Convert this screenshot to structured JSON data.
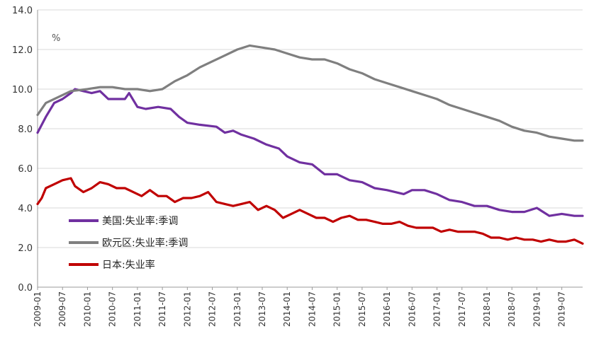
{
  "chart_data": {
    "type": "line",
    "unit_label": "%",
    "ylim": [
      0,
      14
    ],
    "yticks": [
      "0.0",
      "2.0",
      "4.0",
      "6.0",
      "8.0",
      "10.0",
      "12.0",
      "14.0"
    ],
    "xticks": [
      "2009-01",
      "2009-07",
      "2010-01",
      "2010-07",
      "2011-01",
      "2011-07",
      "2012-01",
      "2012-07",
      "2013-01",
      "2013-07",
      "2014-01",
      "2014-07",
      "2015-01",
      "2015-07",
      "2016-01",
      "2016-07",
      "2017-01",
      "2017-07",
      "2018-01",
      "2018-07",
      "2019-01",
      "2019-07"
    ],
    "x_start": "2009-01",
    "x_end": "2019-12",
    "grid": "horizontal",
    "legend_position": "lower-left",
    "series": [
      {
        "name": "美国:失业率:季调",
        "color": "#7030a0",
        "points": [
          [
            "2009-01",
            7.8
          ],
          [
            "2009-03",
            8.6
          ],
          [
            "2009-05",
            9.3
          ],
          [
            "2009-07",
            9.5
          ],
          [
            "2009-09",
            9.8
          ],
          [
            "2009-10",
            10.0
          ],
          [
            "2009-12",
            9.9
          ],
          [
            "2010-02",
            9.8
          ],
          [
            "2010-04",
            9.9
          ],
          [
            "2010-06",
            9.5
          ],
          [
            "2010-08",
            9.5
          ],
          [
            "2010-10",
            9.5
          ],
          [
            "2010-11",
            9.8
          ],
          [
            "2011-01",
            9.1
          ],
          [
            "2011-03",
            9.0
          ],
          [
            "2011-06",
            9.1
          ],
          [
            "2011-09",
            9.0
          ],
          [
            "2011-11",
            8.6
          ],
          [
            "2012-01",
            8.3
          ],
          [
            "2012-04",
            8.2
          ],
          [
            "2012-08",
            8.1
          ],
          [
            "2012-10",
            7.8
          ],
          [
            "2012-12",
            7.9
          ],
          [
            "2013-02",
            7.7
          ],
          [
            "2013-05",
            7.5
          ],
          [
            "2013-08",
            7.2
          ],
          [
            "2013-11",
            7.0
          ],
          [
            "2014-01",
            6.6
          ],
          [
            "2014-04",
            6.3
          ],
          [
            "2014-07",
            6.2
          ],
          [
            "2014-10",
            5.7
          ],
          [
            "2015-01",
            5.7
          ],
          [
            "2015-04",
            5.4
          ],
          [
            "2015-07",
            5.3
          ],
          [
            "2015-10",
            5.0
          ],
          [
            "2016-01",
            4.9
          ],
          [
            "2016-05",
            4.7
          ],
          [
            "2016-07",
            4.9
          ],
          [
            "2016-10",
            4.9
          ],
          [
            "2017-01",
            4.7
          ],
          [
            "2017-04",
            4.4
          ],
          [
            "2017-07",
            4.3
          ],
          [
            "2017-10",
            4.1
          ],
          [
            "2018-01",
            4.1
          ],
          [
            "2018-04",
            3.9
          ],
          [
            "2018-07",
            3.8
          ],
          [
            "2018-10",
            3.8
          ],
          [
            "2019-01",
            4.0
          ],
          [
            "2019-04",
            3.6
          ],
          [
            "2019-07",
            3.7
          ],
          [
            "2019-10",
            3.6
          ],
          [
            "2019-12",
            3.6
          ]
        ]
      },
      {
        "name": "欧元区:失业率:季调",
        "color": "#7f7f7f",
        "points": [
          [
            "2009-01",
            8.7
          ],
          [
            "2009-03",
            9.3
          ],
          [
            "2009-06",
            9.6
          ],
          [
            "2009-09",
            9.9
          ],
          [
            "2010-01",
            10.0
          ],
          [
            "2010-04",
            10.1
          ],
          [
            "2010-07",
            10.1
          ],
          [
            "2010-10",
            10.0
          ],
          [
            "2011-01",
            10.0
          ],
          [
            "2011-04",
            9.9
          ],
          [
            "2011-07",
            10.0
          ],
          [
            "2011-10",
            10.4
          ],
          [
            "2012-01",
            10.7
          ],
          [
            "2012-04",
            11.1
          ],
          [
            "2012-07",
            11.4
          ],
          [
            "2012-10",
            11.7
          ],
          [
            "2013-01",
            12.0
          ],
          [
            "2013-04",
            12.2
          ],
          [
            "2013-07",
            12.1
          ],
          [
            "2013-10",
            12.0
          ],
          [
            "2014-01",
            11.8
          ],
          [
            "2014-04",
            11.6
          ],
          [
            "2014-07",
            11.5
          ],
          [
            "2014-10",
            11.5
          ],
          [
            "2015-01",
            11.3
          ],
          [
            "2015-04",
            11.0
          ],
          [
            "2015-07",
            10.8
          ],
          [
            "2015-10",
            10.5
          ],
          [
            "2016-01",
            10.3
          ],
          [
            "2016-04",
            10.1
          ],
          [
            "2016-07",
            9.9
          ],
          [
            "2016-10",
            9.7
          ],
          [
            "2017-01",
            9.5
          ],
          [
            "2017-04",
            9.2
          ],
          [
            "2017-07",
            9.0
          ],
          [
            "2017-10",
            8.8
          ],
          [
            "2018-01",
            8.6
          ],
          [
            "2018-04",
            8.4
          ],
          [
            "2018-07",
            8.1
          ],
          [
            "2018-10",
            7.9
          ],
          [
            "2019-01",
            7.8
          ],
          [
            "2019-04",
            7.6
          ],
          [
            "2019-07",
            7.5
          ],
          [
            "2019-10",
            7.4
          ],
          [
            "2019-12",
            7.4
          ]
        ]
      },
      {
        "name": "日本:失业率",
        "color": "#c00000",
        "points": [
          [
            "2009-01",
            4.2
          ],
          [
            "2009-02",
            4.5
          ],
          [
            "2009-03",
            5.0
          ],
          [
            "2009-05",
            5.2
          ],
          [
            "2009-07",
            5.4
          ],
          [
            "2009-09",
            5.5
          ],
          [
            "2009-10",
            5.1
          ],
          [
            "2009-12",
            4.8
          ],
          [
            "2010-02",
            5.0
          ],
          [
            "2010-04",
            5.3
          ],
          [
            "2010-06",
            5.2
          ],
          [
            "2010-08",
            5.0
          ],
          [
            "2010-10",
            5.0
          ],
          [
            "2010-12",
            4.8
          ],
          [
            "2011-02",
            4.6
          ],
          [
            "2011-04",
            4.9
          ],
          [
            "2011-06",
            4.6
          ],
          [
            "2011-08",
            4.6
          ],
          [
            "2011-10",
            4.3
          ],
          [
            "2011-12",
            4.5
          ],
          [
            "2012-02",
            4.5
          ],
          [
            "2012-04",
            4.6
          ],
          [
            "2012-06",
            4.8
          ],
          [
            "2012-08",
            4.3
          ],
          [
            "2012-10",
            4.2
          ],
          [
            "2012-12",
            4.1
          ],
          [
            "2013-02",
            4.2
          ],
          [
            "2013-04",
            4.3
          ],
          [
            "2013-06",
            3.9
          ],
          [
            "2013-08",
            4.1
          ],
          [
            "2013-10",
            3.9
          ],
          [
            "2013-12",
            3.5
          ],
          [
            "2014-02",
            3.7
          ],
          [
            "2014-04",
            3.9
          ],
          [
            "2014-06",
            3.7
          ],
          [
            "2014-08",
            3.5
          ],
          [
            "2014-10",
            3.5
          ],
          [
            "2014-12",
            3.3
          ],
          [
            "2015-02",
            3.5
          ],
          [
            "2015-04",
            3.6
          ],
          [
            "2015-06",
            3.4
          ],
          [
            "2015-08",
            3.4
          ],
          [
            "2015-10",
            3.3
          ],
          [
            "2015-12",
            3.2
          ],
          [
            "2016-02",
            3.2
          ],
          [
            "2016-04",
            3.3
          ],
          [
            "2016-06",
            3.1
          ],
          [
            "2016-08",
            3.0
          ],
          [
            "2016-10",
            3.0
          ],
          [
            "2016-12",
            3.0
          ],
          [
            "2017-02",
            2.8
          ],
          [
            "2017-04",
            2.9
          ],
          [
            "2017-06",
            2.8
          ],
          [
            "2017-08",
            2.8
          ],
          [
            "2017-10",
            2.8
          ],
          [
            "2017-12",
            2.7
          ],
          [
            "2018-02",
            2.5
          ],
          [
            "2018-04",
            2.5
          ],
          [
            "2018-06",
            2.4
          ],
          [
            "2018-08",
            2.5
          ],
          [
            "2018-10",
            2.4
          ],
          [
            "2018-12",
            2.4
          ],
          [
            "2019-02",
            2.3
          ],
          [
            "2019-04",
            2.4
          ],
          [
            "2019-06",
            2.3
          ],
          [
            "2019-08",
            2.3
          ],
          [
            "2019-10",
            2.4
          ],
          [
            "2019-12",
            2.2
          ]
        ]
      }
    ]
  }
}
